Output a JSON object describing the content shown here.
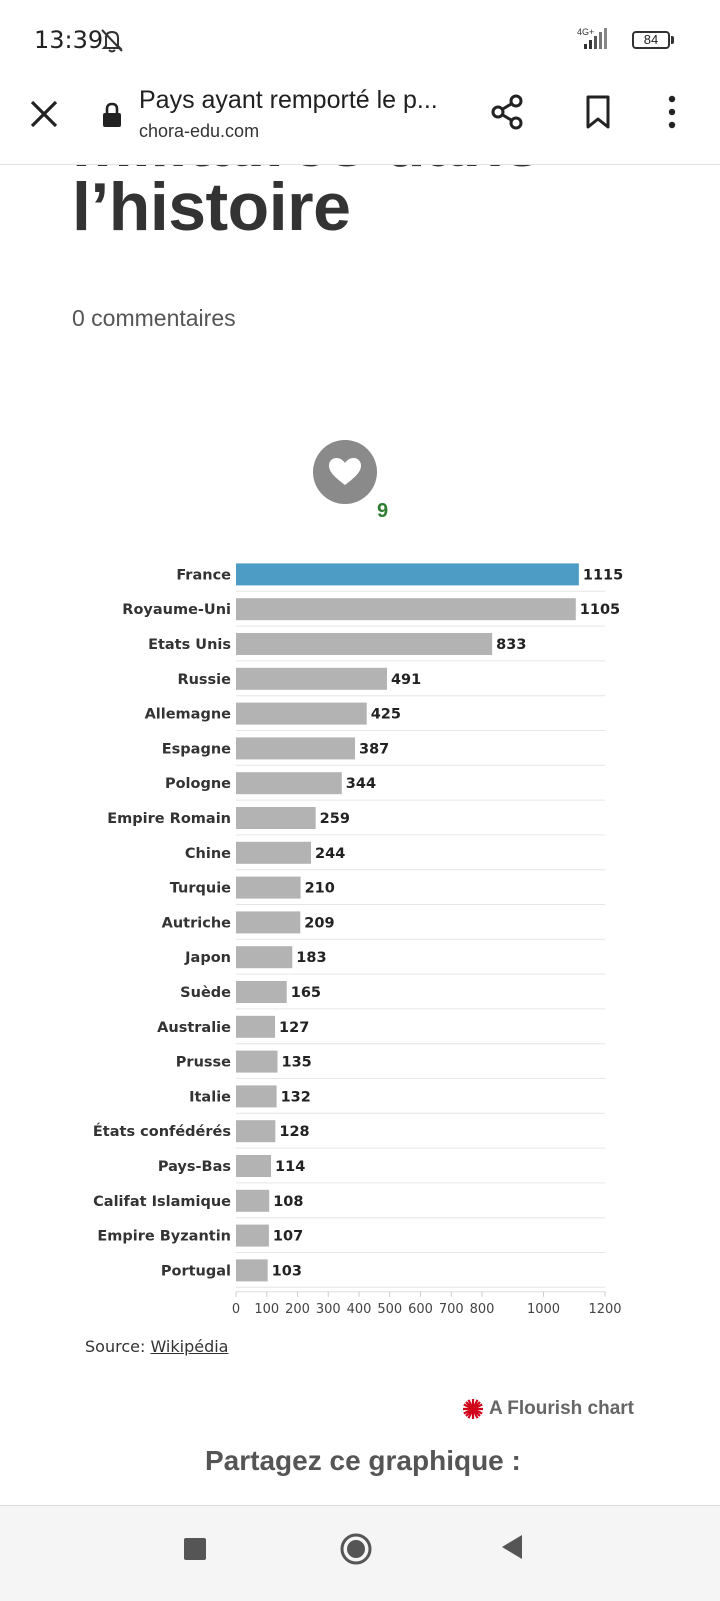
{
  "status": {
    "time": "13:39",
    "network": "4G+",
    "battery": "84"
  },
  "browser": {
    "title": "Pays ayant remporté le p...",
    "domain": "chora-edu.com"
  },
  "article": {
    "heading_line1": "militaires dans",
    "heading_line2": "l’histoire",
    "comments": "0 commentaires",
    "likes": "9"
  },
  "chart_data": {
    "type": "bar",
    "orientation": "horizontal",
    "categories": [
      "France",
      "Royaume-Uni",
      "Etats Unis",
      "Russie",
      "Allemagne",
      "Espagne",
      "Pologne",
      "Empire Romain",
      "Chine",
      "Turquie",
      "Autriche",
      "Japon",
      "Suède",
      "Australie",
      "Prusse",
      "Italie",
      "États confédérés",
      "Pays-Bas",
      "Califat Islamique",
      "Empire Byzantin",
      "Portugal"
    ],
    "values": [
      1115,
      1105,
      833,
      491,
      425,
      387,
      344,
      259,
      244,
      210,
      209,
      183,
      165,
      127,
      135,
      132,
      128,
      114,
      108,
      107,
      103
    ],
    "highlight_category": "France",
    "colors": {
      "highlight": "#4d9cc6",
      "default": "#b3b3b3"
    },
    "xlim": [
      0,
      1200
    ],
    "xticks": [
      0,
      100,
      200,
      300,
      400,
      500,
      600,
      700,
      800,
      1000,
      1200
    ],
    "grid": "horizontal"
  },
  "source": {
    "label": "Source: ",
    "link": "Wikipédia"
  },
  "flourish": "A Flourish chart",
  "share_heading": "Partagez ce graphique :"
}
